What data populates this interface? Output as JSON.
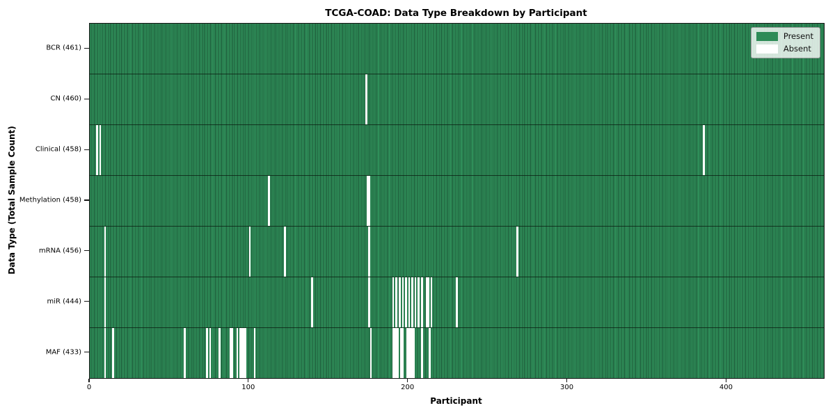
{
  "chart_data": {
    "type": "heatmap",
    "title": "TCGA-COAD: Data Type Breakdown by Participant",
    "xlabel": "Participant",
    "ylabel": "Data Type (Total Sample Count)",
    "x_ticks": [
      0,
      100,
      200,
      300,
      400
    ],
    "xlim": [
      0,
      461
    ],
    "n_participants": 461,
    "grid": false,
    "legend_position": "upper right",
    "legend": [
      {
        "label": "Present",
        "color": "#2e8b57"
      },
      {
        "label": "Absent",
        "color": "#ffffff"
      }
    ],
    "cell_colors": {
      "present": "#2e8b57",
      "edge": "#1c5737",
      "absent": "#ffffff"
    },
    "rows": [
      {
        "label": "BCR (461)",
        "data_type": "BCR",
        "present_count": 461,
        "absent_participants": []
      },
      {
        "label": "CN (460)",
        "data_type": "CN",
        "present_count": 460,
        "absent_participants": [
          173
        ]
      },
      {
        "label": "Clinical (458)",
        "data_type": "Clinical",
        "present_count": 458,
        "absent_participants": [
          4,
          6,
          385
        ]
      },
      {
        "label": "Methylation (458)",
        "data_type": "Methylation",
        "present_count": 458,
        "absent_participants": [
          112,
          174,
          175
        ]
      },
      {
        "label": "mRNA (456)",
        "data_type": "mRNA",
        "present_count": 456,
        "absent_participants": [
          9,
          100,
          122,
          175,
          268
        ]
      },
      {
        "label": "miR (444)",
        "data_type": "miR",
        "present_count": 444,
        "absent_participants": [
          9,
          139,
          175,
          190,
          192,
          194,
          196,
          198,
          200,
          202,
          204,
          206,
          208,
          211,
          212,
          214,
          230
        ]
      },
      {
        "label": "MAF (433)",
        "data_type": "MAF",
        "present_count": 433,
        "absent_participants": [
          9,
          14,
          59,
          73,
          75,
          81,
          88,
          89,
          92,
          94,
          95,
          96,
          97,
          103,
          176,
          190,
          191,
          192,
          193,
          195,
          196,
          199,
          200,
          201,
          202,
          203,
          208,
          213
        ]
      }
    ]
  }
}
